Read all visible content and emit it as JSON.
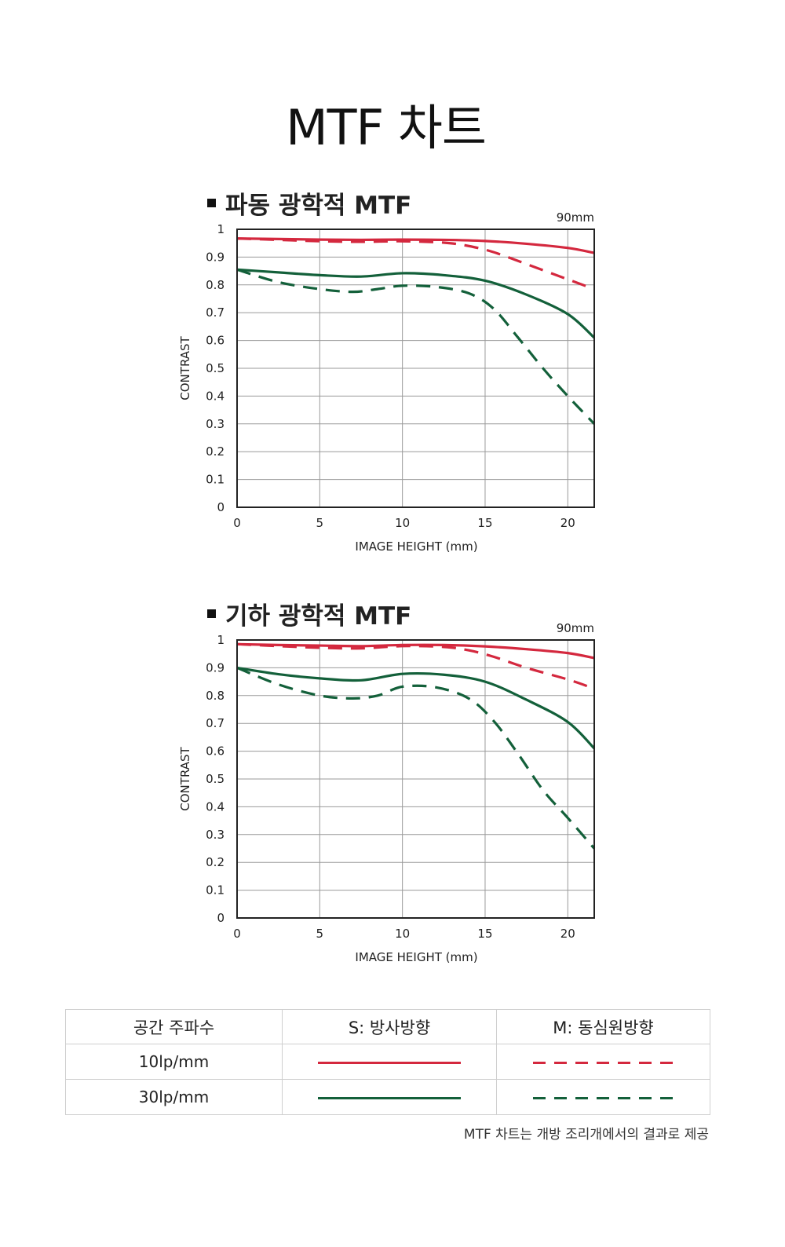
{
  "page": {
    "title": "MTF 차트",
    "footnote": "MTF 차트는 개방 조리개에서의 결과로 제공"
  },
  "colors": {
    "red": "#d4283e",
    "green": "#13603a",
    "grid": "#9a9a9a",
    "frame": "#222222"
  },
  "charts": [
    {
      "title": "파동 광학적 MTF",
      "focal_length": "90mm",
      "xlabel": "IMAGE HEIGHT (mm)",
      "ylabel": "CONTRAST"
    },
    {
      "title": "기하 광학적 MTF",
      "focal_length": "90mm",
      "xlabel": "IMAGE HEIGHT (mm)",
      "ylabel": "CONTRAST"
    }
  ],
  "chart_data": [
    {
      "type": "line",
      "title": "파동 광학적 MTF",
      "xlabel": "IMAGE HEIGHT (mm)",
      "ylabel": "CONTRAST",
      "xlim": [
        0,
        21.6
      ],
      "ylim": [
        0,
        1
      ],
      "xticks": [
        "0",
        "5",
        "10",
        "15",
        "20"
      ],
      "yticks": [
        "0",
        "0.1",
        "0.2",
        "0.3",
        "0.4",
        "0.5",
        "0.6",
        "0.7",
        "0.8",
        "0.9",
        "1"
      ],
      "grid": true,
      "series": [
        {
          "color": "red",
          "dashed": false,
          "x": [
            0,
            2.5,
            5,
            7.5,
            10,
            12.5,
            15,
            17.5,
            20,
            21.6
          ],
          "y": [
            0.967,
            0.965,
            0.963,
            0.962,
            0.963,
            0.962,
            0.958,
            0.948,
            0.933,
            0.915
          ]
        },
        {
          "color": "red",
          "dashed": true,
          "x": [
            0,
            2.5,
            5,
            7.5,
            10,
            12.5,
            14,
            15.5,
            17.5,
            20,
            21.6
          ],
          "y": [
            0.967,
            0.962,
            0.957,
            0.955,
            0.957,
            0.952,
            0.94,
            0.918,
            0.875,
            0.82,
            0.785
          ]
        },
        {
          "color": "green",
          "dashed": false,
          "x": [
            0,
            2.5,
            5,
            7.5,
            10,
            12.5,
            15,
            17.5,
            20,
            21.6
          ],
          "y": [
            0.855,
            0.845,
            0.835,
            0.83,
            0.842,
            0.835,
            0.815,
            0.765,
            0.695,
            0.61
          ]
        },
        {
          "color": "green",
          "dashed": true,
          "x": [
            0,
            2.5,
            5,
            7,
            8.5,
            10,
            12,
            14,
            15.5,
            17,
            18.5,
            20,
            21.6
          ],
          "y": [
            0.855,
            0.81,
            0.785,
            0.775,
            0.785,
            0.797,
            0.793,
            0.77,
            0.715,
            0.61,
            0.5,
            0.4,
            0.3
          ]
        }
      ]
    },
    {
      "type": "line",
      "title": "기하 광학적 MTF",
      "xlabel": "IMAGE HEIGHT (mm)",
      "ylabel": "CONTRAST",
      "xlim": [
        0,
        21.6
      ],
      "ylim": [
        0,
        1
      ],
      "xticks": [
        "0",
        "5",
        "10",
        "15",
        "20"
      ],
      "yticks": [
        "0",
        "0.1",
        "0.2",
        "0.3",
        "0.4",
        "0.5",
        "0.6",
        "0.7",
        "0.8",
        "0.9",
        "1"
      ],
      "grid": true,
      "series": [
        {
          "color": "red",
          "dashed": false,
          "x": [
            0,
            2.5,
            5,
            7.5,
            10,
            12.5,
            15,
            17.5,
            20,
            21.6
          ],
          "y": [
            0.985,
            0.982,
            0.98,
            0.978,
            0.982,
            0.982,
            0.977,
            0.967,
            0.953,
            0.935
          ]
        },
        {
          "color": "red",
          "dashed": true,
          "x": [
            0,
            2.5,
            5,
            7.5,
            10,
            12.5,
            14,
            15.5,
            17.5,
            20,
            21.6
          ],
          "y": [
            0.985,
            0.978,
            0.972,
            0.97,
            0.978,
            0.975,
            0.963,
            0.94,
            0.9,
            0.858,
            0.825
          ]
        },
        {
          "color": "green",
          "dashed": false,
          "x": [
            0,
            2.5,
            5,
            7.5,
            10,
            12.5,
            15,
            17.5,
            20,
            21.6
          ],
          "y": [
            0.9,
            0.877,
            0.862,
            0.855,
            0.878,
            0.875,
            0.85,
            0.785,
            0.705,
            0.61
          ]
        },
        {
          "color": "green",
          "dashed": true,
          "x": [
            0,
            2.5,
            5,
            7,
            8.5,
            10,
            12,
            14,
            15.5,
            17,
            18.5,
            20,
            21.6
          ],
          "y": [
            0.9,
            0.84,
            0.8,
            0.79,
            0.8,
            0.832,
            0.83,
            0.79,
            0.71,
            0.59,
            0.46,
            0.36,
            0.25
          ]
        }
      ]
    }
  ],
  "legend": {
    "headers": [
      "공간 주파수",
      "S: 방사방향",
      "M: 동심원방향"
    ],
    "rows": [
      {
        "frequency": "10lp/mm",
        "color": "red"
      },
      {
        "frequency": "30lp/mm",
        "color": "green"
      }
    ]
  }
}
